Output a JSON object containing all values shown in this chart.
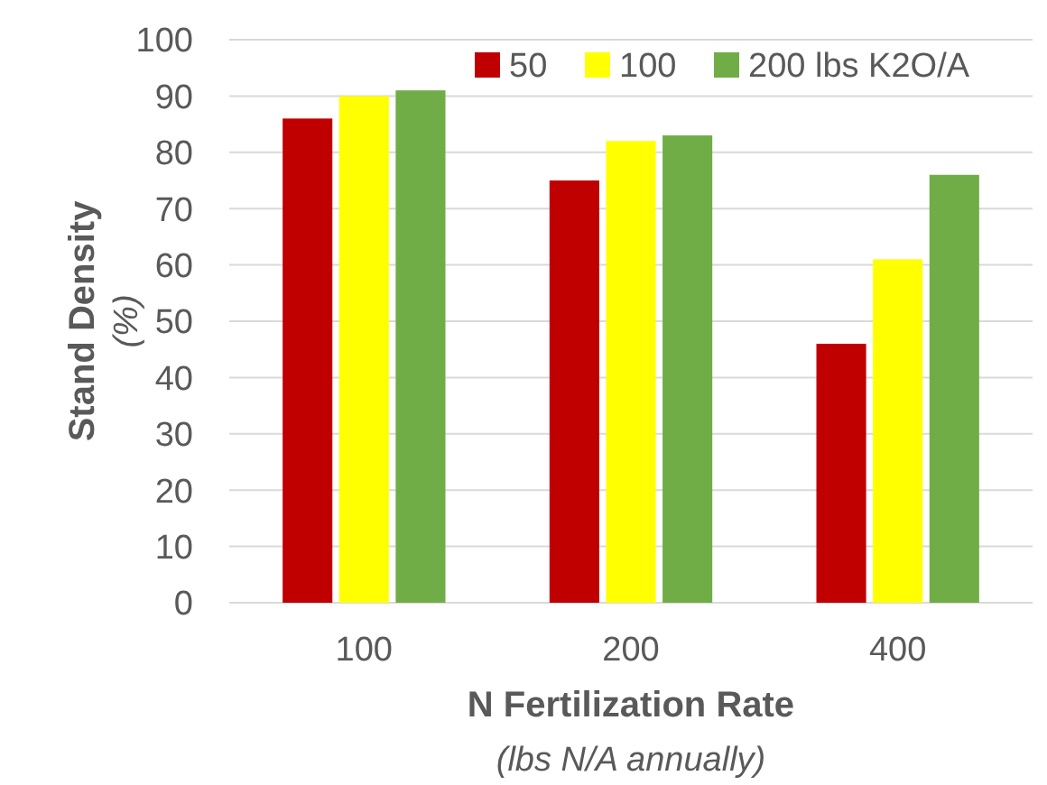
{
  "chart_data": {
    "type": "bar",
    "xlabel": "N Fertilization Rate\n(lbs N/A annually)",
    "ylabel": "Stand Density\n(%)",
    "categories": [
      "100",
      "200",
      "400"
    ],
    "series": [
      {
        "name": "50",
        "color": "#c00000",
        "values": [
          86,
          75,
          46
        ]
      },
      {
        "name": "100",
        "color": "#ffff00",
        "values": [
          90,
          82,
          61
        ]
      },
      {
        "name": "200 lbs K2O/A",
        "color": "#70ad47",
        "values": [
          91,
          83,
          76
        ]
      }
    ],
    "ylim": [
      0,
      100
    ],
    "yticks": [
      0,
      10,
      20,
      30,
      40,
      50,
      60,
      70,
      80,
      90,
      100
    ],
    "grid": "y",
    "legend": "top right"
  }
}
